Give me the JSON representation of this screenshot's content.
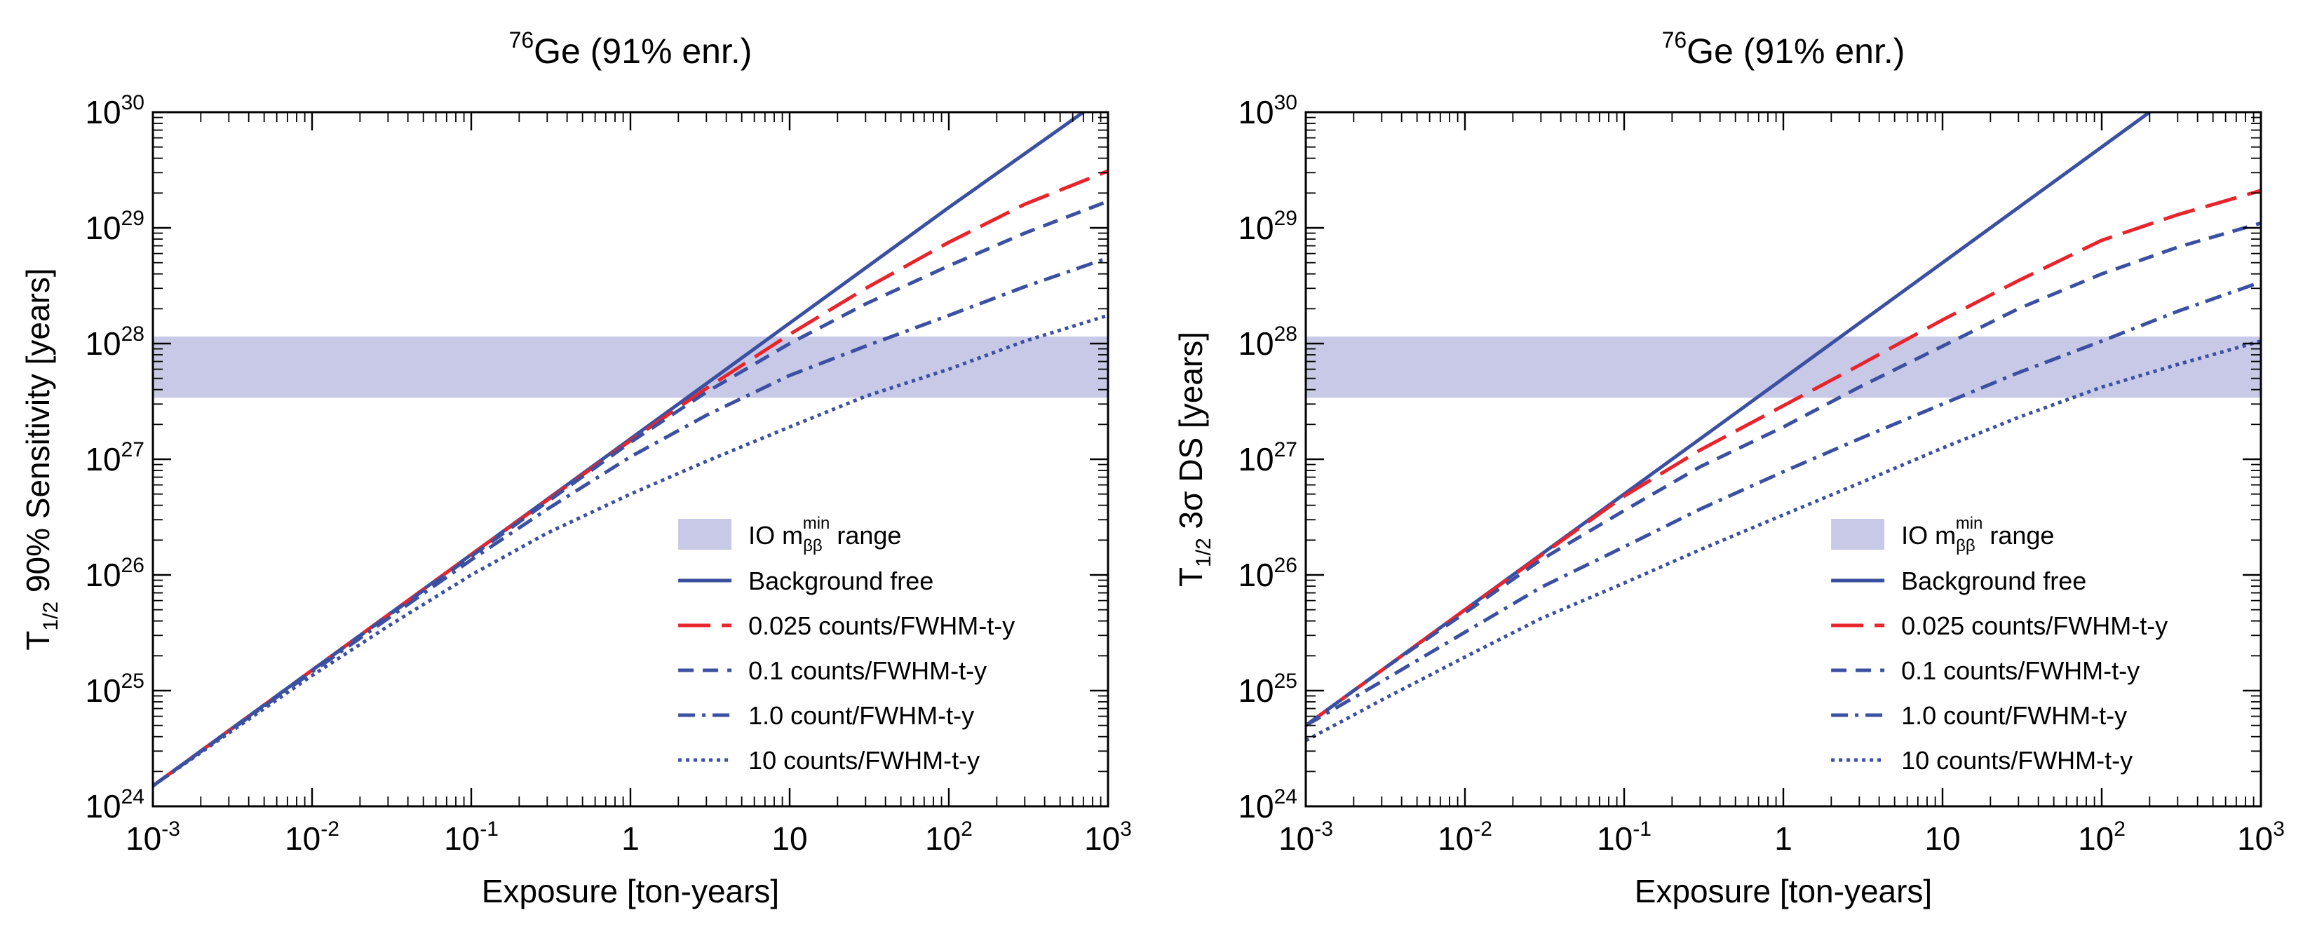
{
  "colors": {
    "blue": "#3b50a0",
    "red": "#e8242c",
    "band": "#c8c9e6",
    "axis": "#000000"
  },
  "chart_data": [
    {
      "type": "line",
      "title_sup": "76",
      "title": "Ge (91% enr.)",
      "xlabel": "Exposure [ton-years]",
      "ylabel_main": "T",
      "ylabel_sub": "1/2",
      "ylabel_rest": " 90% Sensitivity [years]",
      "xscale": "log",
      "yscale": "log",
      "xlim": [
        0.001,
        1000
      ],
      "ylim": [
        1e+24,
        1e+30
      ],
      "x_tick_labels": [
        "10",
        "10",
        "10",
        "1",
        "10",
        "10",
        "10"
      ],
      "x_tick_exps": [
        "-3",
        "-2",
        "-1",
        "",
        "",
        "2",
        "3"
      ],
      "y_tick_labels": [
        "10",
        "10",
        "10",
        "10",
        "10",
        "10",
        "10"
      ],
      "y_tick_exps": [
        "24",
        "25",
        "26",
        "27",
        "28",
        "29",
        "30"
      ],
      "band": {
        "ymin": 3.4e+27,
        "ymax": 1.15e+28
      },
      "legend_position": "lower-right",
      "legend": [
        {
          "key": "band",
          "pre": "IO m",
          "sub": "ββ",
          "sup": "min",
          "post": " range"
        },
        {
          "key": "bf",
          "label": "Background free"
        },
        {
          "key": "b0025",
          "label": "0.025 counts/FWHM-t-y"
        },
        {
          "key": "b01",
          "label": "0.1 counts/FWHM-t-y"
        },
        {
          "key": "b1",
          "label": "1.0 count/FWHM-t-y"
        },
        {
          "key": "b10",
          "label": "10 counts/FWHM-t-y"
        }
      ],
      "series": [
        {
          "key": "bf",
          "name": "Background free",
          "color": "blue",
          "dash": "solid",
          "x": [
            0.001,
            0.01,
            0.1,
            1,
            10,
            100,
            700
          ],
          "y": [
            1.5e+24,
            1.5e+25,
            1.5e+26,
            1.5e+27,
            1.5e+28,
            1.5e+29,
            1e+30
          ]
        },
        {
          "key": "b0025",
          "name": "0.025 counts/FWHM-t-y",
          "color": "red",
          "dash": "long",
          "x": [
            0.001,
            0.01,
            0.1,
            1,
            3,
            10,
            30,
            100,
            300,
            1000
          ],
          "y": [
            1.5e+24,
            1.5e+25,
            1.5e+26,
            1.45e+27,
            4.1e+27,
            1.2e+28,
            3e+28,
            7.5e+28,
            1.6e+29,
            3.1e+29
          ]
        },
        {
          "key": "b01",
          "name": "0.1 counts/FWHM-t-y",
          "color": "blue",
          "dash": "dashed",
          "x": [
            0.001,
            0.01,
            0.1,
            1,
            3,
            10,
            30,
            100,
            300,
            1000
          ],
          "y": [
            1.5e+24,
            1.5e+25,
            1.45e+26,
            1.4e+27,
            3.8e+27,
            1e+28,
            2.2e+28,
            4.7e+28,
            9e+28,
            1.7e+29
          ]
        },
        {
          "key": "b1",
          "name": "1.0 count/FWHM-t-y",
          "color": "blue",
          "dash": "dashdot",
          "x": [
            0.001,
            0.01,
            0.1,
            0.3,
            1,
            3,
            10,
            30,
            100,
            300,
            1000
          ],
          "y": [
            1.5e+24,
            1.45e+25,
            1.35e+26,
            3.7e+26,
            1.05e+27,
            2.4e+27,
            5.3e+27,
            9.5e+27,
            1.75e+28,
            3.1e+28,
            5.5e+28
          ]
        },
        {
          "key": "b10",
          "name": "10 counts/FWHM-t-y",
          "color": "blue",
          "dash": "dotted",
          "x": [
            0.001,
            0.003,
            0.01,
            0.03,
            0.1,
            0.3,
            1,
            3,
            10,
            30,
            100,
            300,
            1000
          ],
          "y": [
            1.5e+24,
            4.3e+24,
            1.35e+25,
            3.6e+25,
            1e+26,
            2.3e+26,
            5e+26,
            9.6e+26,
            1.9e+27,
            3.5e+27,
            6e+27,
            1.05e+28,
            1.75e+28
          ]
        }
      ]
    },
    {
      "type": "line",
      "title_sup": "76",
      "title": "Ge (91% enr.)",
      "xlabel": "Exposure [ton-years]",
      "ylabel_main": "T",
      "ylabel_sub": "1/2",
      "ylabel_rest": " 3σ DS [years]",
      "xscale": "log",
      "yscale": "log",
      "xlim": [
        0.001,
        1000
      ],
      "ylim": [
        1e+24,
        1e+30
      ],
      "x_tick_labels": [
        "10",
        "10",
        "10",
        "1",
        "10",
        "10",
        "10"
      ],
      "x_tick_exps": [
        "-3",
        "-2",
        "-1",
        "",
        "",
        "2",
        "3"
      ],
      "y_tick_labels": [
        "10",
        "10",
        "10",
        "10",
        "10",
        "10",
        "10"
      ],
      "y_tick_exps": [
        "24",
        "25",
        "26",
        "27",
        "28",
        "29",
        "30"
      ],
      "band": {
        "ymin": 3.4e+27,
        "ymax": 1.15e+28
      },
      "legend_position": "lower-right",
      "legend": [
        {
          "key": "band",
          "pre": "IO m",
          "sub": "ββ",
          "sup": "min",
          "post": " range"
        },
        {
          "key": "bf",
          "label": "Background free"
        },
        {
          "key": "b0025",
          "label": "0.025 counts/FWHM-t-y"
        },
        {
          "key": "b01",
          "label": "0.1 counts/FWHM-t-y"
        },
        {
          "key": "b1",
          "label": "1.0 count/FWHM-t-y"
        },
        {
          "key": "b10",
          "label": "10 counts/FWHM-t-y"
        }
      ],
      "series": [
        {
          "key": "bf",
          "name": "Background free",
          "color": "blue",
          "dash": "solid",
          "x": [
            0.001,
            0.01,
            0.1,
            1,
            10,
            100,
            200
          ],
          "y": [
            5e+24,
            5e+25,
            5e+26,
            5e+27,
            5e+28,
            5e+29,
            1e+30
          ]
        },
        {
          "key": "b0025",
          "name": "0.025 counts/FWHM-t-y",
          "color": "red",
          "dash": "long",
          "x": [
            0.001,
            0.01,
            0.1,
            0.3,
            1,
            3,
            10,
            30,
            100,
            300,
            1000
          ],
          "y": [
            5e+24,
            5e+25,
            4.8e+26,
            1.2e+27,
            2.9e+27,
            6.5e+27,
            1.6e+28,
            3.5e+28,
            7.8e+28,
            1.3e+29,
            2.1e+29
          ]
        },
        {
          "key": "b01",
          "name": "0.1 counts/FWHM-t-y",
          "color": "blue",
          "dash": "dashed",
          "x": [
            0.001,
            0.003,
            0.01,
            0.03,
            0.1,
            0.3,
            1,
            3,
            10,
            30,
            100,
            300,
            1000
          ],
          "y": [
            5e+24,
            1.5e+25,
            4.7e+25,
            1.35e+26,
            3.6e+26,
            8.6e+26,
            1.9e+27,
            4.2e+27,
            9.5e+27,
            2e+28,
            4e+28,
            6.8e+28,
            1.1e+29
          ]
        },
        {
          "key": "b1",
          "name": "1.0 count/FWHM-t-y",
          "color": "blue",
          "dash": "dashdot",
          "x": [
            0.001,
            0.003,
            0.01,
            0.03,
            0.1,
            0.3,
            1,
            3,
            10,
            30,
            100,
            300,
            1000
          ],
          "y": [
            5e+24,
            1.2e+25,
            3.2e+25,
            7.8e+25,
            1.75e+26,
            3.7e+26,
            7.8e+26,
            1.5e+27,
            3e+27,
            5.6e+27,
            1.05e+28,
            1.9e+28,
            3.4e+28
          ]
        },
        {
          "key": "b10",
          "name": "10 counts/FWHM-t-y",
          "color": "blue",
          "dash": "dotted",
          "x": [
            0.001,
            0.003,
            0.01,
            0.03,
            0.1,
            0.3,
            1,
            3,
            10,
            30,
            100,
            300,
            1000
          ],
          "y": [
            3.7e+24,
            8.3e+24,
            1.95e+25,
            4.2e+25,
            8.5e+25,
            1.65e+26,
            3.3e+26,
            6.2e+26,
            1.25e+27,
            2.3e+27,
            4.2e+27,
            6.6e+27,
            1.05e+28
          ]
        }
      ]
    }
  ]
}
